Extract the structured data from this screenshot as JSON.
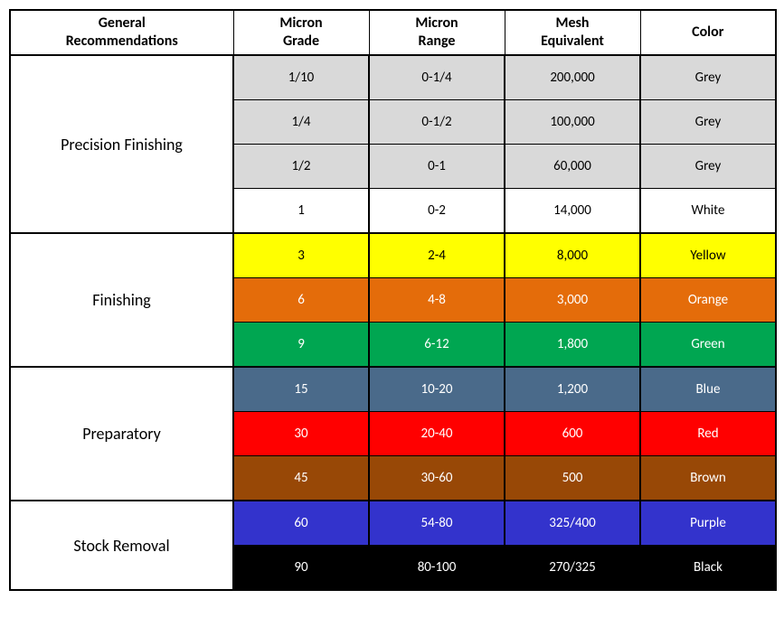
{
  "columns": [
    "General\nRecommendations",
    "Micron\nGrade",
    "Micron\nRange",
    "Mesh\nEquivalent",
    "Color"
  ],
  "colors": {
    "grey": {
      "bg": "#d9d9d9",
      "fg": "#000000"
    },
    "white": {
      "bg": "#ffffff",
      "fg": "#000000"
    },
    "yellow": {
      "bg": "#ffff00",
      "fg": "#000000"
    },
    "orange": {
      "bg": "#e46c0a",
      "fg": "#ffffff"
    },
    "green": {
      "bg": "#00a651",
      "fg": "#ffffff"
    },
    "blue": {
      "bg": "#4a6a8a",
      "fg": "#ffffff"
    },
    "red": {
      "bg": "#ff0000",
      "fg": "#ffffff"
    },
    "brown": {
      "bg": "#984806",
      "fg": "#ffffff"
    },
    "purple": {
      "bg": "#3333cc",
      "fg": "#ffffff"
    },
    "black": {
      "bg": "#000000",
      "fg": "#ffffff"
    }
  },
  "groups": [
    {
      "name": "Precision Finishing",
      "rows": [
        {
          "grade": "1/10",
          "range": "0-1/4",
          "mesh": "200,000",
          "color_label": "Grey",
          "color_key": "grey"
        },
        {
          "grade": "1/4",
          "range": "0-1/2",
          "mesh": "100,000",
          "color_label": "Grey",
          "color_key": "grey"
        },
        {
          "grade": "1/2",
          "range": "0-1",
          "mesh": "60,000",
          "color_label": "Grey",
          "color_key": "grey"
        },
        {
          "grade": "1",
          "range": "0-2",
          "mesh": "14,000",
          "color_label": "White",
          "color_key": "white"
        }
      ]
    },
    {
      "name": "Finishing",
      "rows": [
        {
          "grade": "3",
          "range": "2-4",
          "mesh": "8,000",
          "color_label": "Yellow",
          "color_key": "yellow"
        },
        {
          "grade": "6",
          "range": "4-8",
          "mesh": "3,000",
          "color_label": "Orange",
          "color_key": "orange"
        },
        {
          "grade": "9",
          "range": "6-12",
          "mesh": "1,800",
          "color_label": "Green",
          "color_key": "green"
        }
      ]
    },
    {
      "name": "Preparatory",
      "rows": [
        {
          "grade": "15",
          "range": "10-20",
          "mesh": "1,200",
          "color_label": "Blue",
          "color_key": "blue"
        },
        {
          "grade": "30",
          "range": "20-40",
          "mesh": "600",
          "color_label": "Red",
          "color_key": "red"
        },
        {
          "grade": "45",
          "range": "30-60",
          "mesh": "500",
          "color_label": "Brown",
          "color_key": "brown"
        }
      ]
    },
    {
      "name": "Stock Removal",
      "rows": [
        {
          "grade": "60",
          "range": "54-80",
          "mesh": "325/400",
          "color_label": "Purple",
          "color_key": "purple"
        },
        {
          "grade": "90",
          "range": "80-100",
          "mesh": "270/325",
          "color_label": "Black",
          "color_key": "black"
        }
      ]
    }
  ]
}
